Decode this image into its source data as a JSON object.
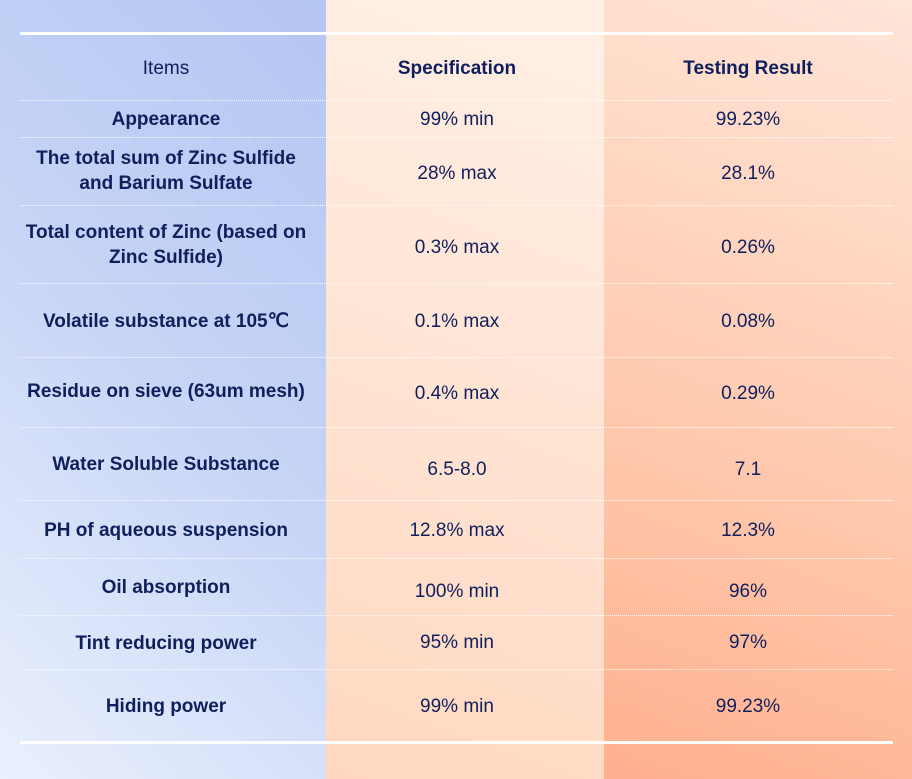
{
  "table": {
    "headers": [
      "Items",
      "Specification",
      "Testing Result"
    ],
    "rows": [
      {
        "item": "Appearance",
        "spec": "99% min",
        "result": "99.23%"
      },
      {
        "item": "The total sum of Zinc Sulfide and Barium Sulfate",
        "spec": "28% max",
        "result": "28.1%"
      },
      {
        "item": "Total content of Zinc (based on Zinc Sulfide)",
        "spec": "0.3% max",
        "result": "0.26%"
      },
      {
        "item": "Volatile substance at 105℃",
        "spec": "0.1% max",
        "result": "0.08%"
      },
      {
        "item": "Residue on sieve (63um mesh)",
        "spec": "0.4% max",
        "result": "0.29%"
      },
      {
        "item": "Water Soluble Substance",
        "spec": "6.5-8.0",
        "result": "7.1"
      },
      {
        "item": "PH of aqueous suspension",
        "spec": "12.8% max",
        "result": "12.3%"
      },
      {
        "item": "Oil absorption",
        "spec": "100% min",
        "result": "96%"
      },
      {
        "item": "Tint reducing power",
        "spec": "95% min",
        "result": "97%"
      },
      {
        "item": "Hiding power",
        "spec": "99% min",
        "result": "99.23%"
      }
    ]
  }
}
